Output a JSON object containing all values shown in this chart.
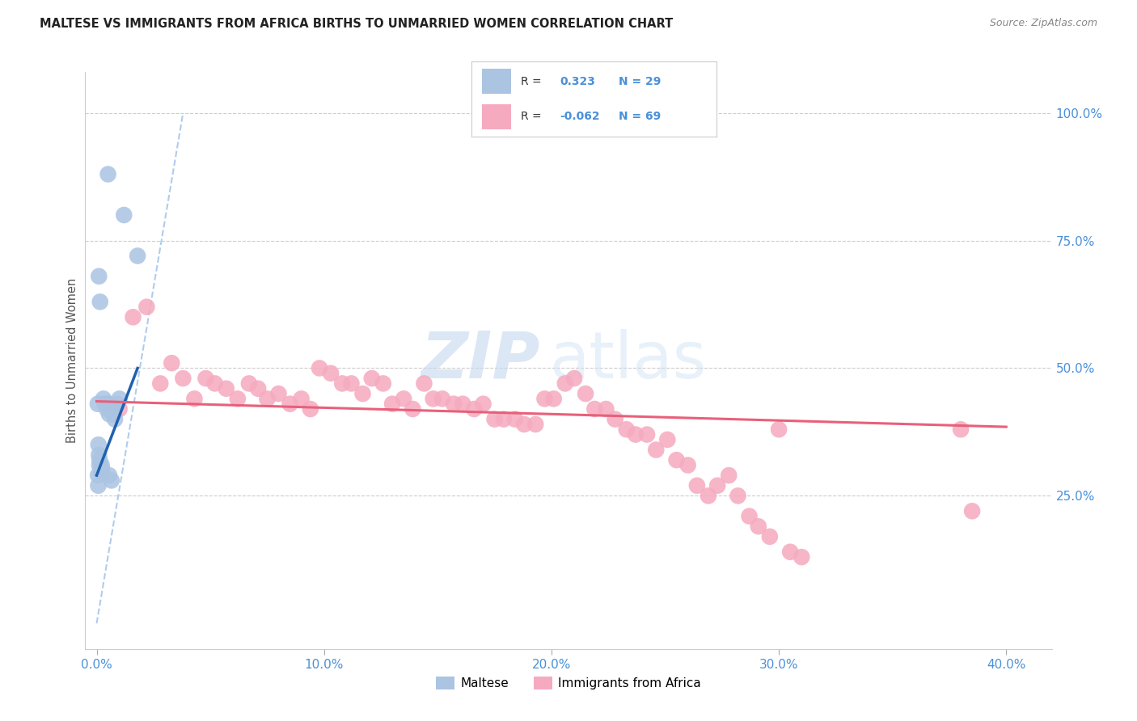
{
  "title": "MALTESE VS IMMIGRANTS FROM AFRICA BIRTHS TO UNMARRIED WOMEN CORRELATION CHART",
  "source": "Source: ZipAtlas.com",
  "xlabel_ticks": [
    "0.0%",
    "10.0%",
    "20.0%",
    "30.0%",
    "40.0%"
  ],
  "xlabel_vals": [
    0.0,
    10.0,
    20.0,
    30.0,
    40.0
  ],
  "ylabel": "Births to Unmarried Women",
  "ylabel_ticks": [
    "25.0%",
    "50.0%",
    "75.0%",
    "100.0%"
  ],
  "ylabel_vals": [
    25.0,
    50.0,
    75.0,
    100.0
  ],
  "ylim": [
    -5,
    108
  ],
  "xlim": [
    -0.5,
    42
  ],
  "watermark_zip": "ZIP",
  "watermark_atlas": "atlas",
  "maltese_R": 0.323,
  "maltese_N": 29,
  "africa_R": -0.062,
  "africa_N": 69,
  "maltese_color": "#aac4e2",
  "africa_color": "#f5aabf",
  "maltese_line_color": "#2060b0",
  "africa_line_color": "#e8607a",
  "diagonal_color": "#b0ccee",
  "grid_color": "#cccccc",
  "blue_text_color": "#4a90d9",
  "maltese_x": [
    0.5,
    1.2,
    0.1,
    0.15,
    0.05,
    0.08,
    0.1,
    0.12,
    0.18,
    0.22,
    0.3,
    0.35,
    0.4,
    0.45,
    0.5,
    0.55,
    0.6,
    0.7,
    0.75,
    0.8,
    0.9,
    1.0,
    0.06,
    0.07,
    0.13,
    0.25,
    0.65,
    0.55,
    1.8
  ],
  "maltese_y": [
    88,
    80,
    68,
    63,
    43,
    35,
    33,
    31,
    30,
    31,
    44,
    43,
    43,
    42,
    43,
    41,
    42,
    42,
    41,
    40,
    43,
    44,
    29,
    27,
    32,
    30,
    28,
    29,
    72
  ],
  "africa_x": [
    0.5,
    1.0,
    1.6,
    2.2,
    2.8,
    3.3,
    3.8,
    4.3,
    4.8,
    5.2,
    5.7,
    6.2,
    6.7,
    7.1,
    7.5,
    8.0,
    8.5,
    9.0,
    9.4,
    9.8,
    10.3,
    10.8,
    11.2,
    11.7,
    12.1,
    12.6,
    13.0,
    13.5,
    13.9,
    14.4,
    14.8,
    15.2,
    15.7,
    16.1,
    16.6,
    17.0,
    17.5,
    17.9,
    18.4,
    18.8,
    19.3,
    19.7,
    20.1,
    20.6,
    21.0,
    21.5,
    21.9,
    22.4,
    22.8,
    23.3,
    23.7,
    24.2,
    24.6,
    25.1,
    25.5,
    26.0,
    26.4,
    26.9,
    27.3,
    27.8,
    28.2,
    28.7,
    29.1,
    29.6,
    30.0,
    30.5,
    31.0,
    38.0,
    38.5
  ],
  "africa_y": [
    43,
    42,
    60,
    62,
    47,
    51,
    48,
    44,
    48,
    47,
    46,
    44,
    47,
    46,
    44,
    45,
    43,
    44,
    42,
    50,
    49,
    47,
    47,
    45,
    48,
    47,
    43,
    44,
    42,
    47,
    44,
    44,
    43,
    43,
    42,
    43,
    40,
    40,
    40,
    39,
    39,
    44,
    44,
    47,
    48,
    45,
    42,
    42,
    40,
    38,
    37,
    37,
    34,
    36,
    32,
    31,
    27,
    25,
    27,
    29,
    25,
    21,
    19,
    17,
    38,
    14,
    13,
    38,
    22
  ],
  "maltese_reg_x0": 0.0,
  "maltese_reg_y0": 29.0,
  "maltese_reg_x1": 1.8,
  "maltese_reg_y1": 50.0,
  "africa_reg_x0": 0.0,
  "africa_reg_y0": 43.5,
  "africa_reg_x1": 40.0,
  "africa_reg_y1": 38.5,
  "diag_x0": 0.0,
  "diag_y0": 0.0,
  "diag_x1": 3.8,
  "diag_y1": 100.0
}
